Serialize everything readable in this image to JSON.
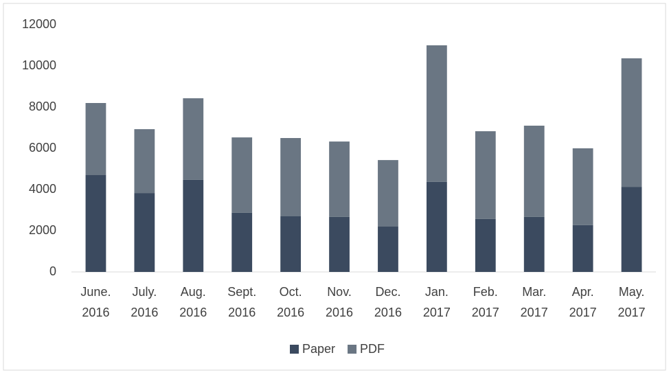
{
  "chart_data": {
    "type": "stacked_bar",
    "categories": [
      "June. 2016",
      "July. 2016",
      "Aug. 2016",
      "Sept. 2016",
      "Oct. 2016",
      "Nov. 2016",
      "Dec. 2016",
      "Jan. 2017",
      "Feb. 2017",
      "Mar. 2017",
      "Apr. 2017",
      "May. 2017"
    ],
    "series": [
      {
        "name": "Paper",
        "color": "#3b4a5f",
        "values": [
          4700,
          3830,
          4470,
          2870,
          2700,
          2670,
          2200,
          4370,
          2570,
          2670,
          2270,
          4130
        ]
      },
      {
        "name": "PDF",
        "color": "#6a7683",
        "values": [
          3500,
          3100,
          3960,
          3660,
          3800,
          3660,
          3230,
          6630,
          4260,
          4430,
          3730,
          6240
        ]
      }
    ],
    "ylim": [
      0,
      12000
    ],
    "yticks": [
      0,
      2000,
      4000,
      6000,
      8000,
      10000,
      12000
    ],
    "grid": false,
    "legend": "bottom"
  }
}
